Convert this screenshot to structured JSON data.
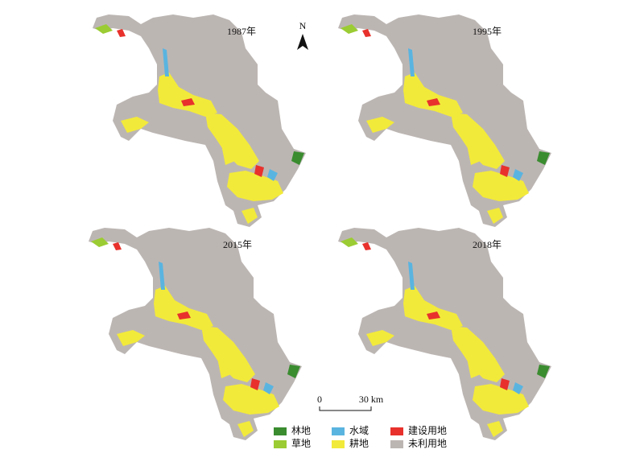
{
  "panels": [
    {
      "label": "1987年"
    },
    {
      "label": "1995年"
    },
    {
      "label": "2015年"
    },
    {
      "label": "2018年"
    }
  ],
  "north": "N",
  "scale_bar": {
    "labels": [
      "0",
      "30 km"
    ]
  },
  "legend": [
    {
      "label": "林地",
      "color": "#3a8c2f"
    },
    {
      "label": "草地",
      "color": "#9bcc33"
    },
    {
      "label": "水域",
      "color": "#5ab4e0"
    },
    {
      "label": "耕地",
      "color": "#f2ea3a"
    },
    {
      "label": "建设用地",
      "color": "#e8312c"
    },
    {
      "label": "未利用地",
      "color": "#bcb6b3"
    }
  ]
}
